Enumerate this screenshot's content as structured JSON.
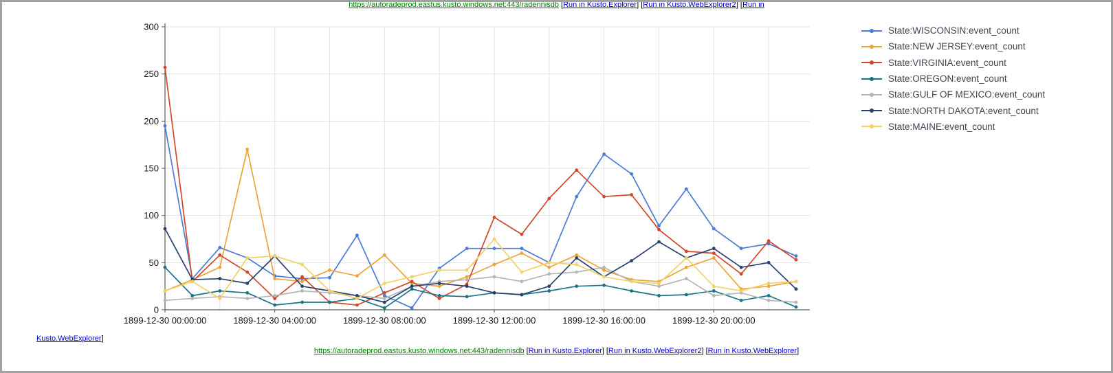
{
  "colors": {
    "frame_border": "#a1a1a1",
    "grid_line": "#e2e2e2",
    "axis_line": "#5a5a5a",
    "axis_text": "#141414",
    "legend_text": "#3f4652",
    "url_link": "#008000",
    "run_link": "#0000d0"
  },
  "top_bar": {
    "url": "https://autoradeprod.eastus.kusto.windows.net:443/radennisdb",
    "links": [
      {
        "open": " [",
        "label": "Run in Kusto.Explorer",
        "close": "]"
      },
      {
        "open": " [",
        "label": "Run in Kusto.WebExplorer2",
        "close": "]"
      },
      {
        "open": " [",
        "label": "Run in",
        "close": ""
      }
    ]
  },
  "bottom_bar": {
    "url": "https://autoradeprod.eastus.kusto.windows.net:443/radennisdb",
    "links": [
      {
        "open": " [",
        "label": "Run in Kusto.Explorer",
        "close": "]"
      },
      {
        "open": " [",
        "label": "Run in Kusto.WebExplorer2",
        "close": "]"
      },
      {
        "open": " [",
        "label": "Run in Kusto.WebExplorer",
        "close": "]"
      }
    ]
  },
  "bottom_left": {
    "label": "Kusto.WebExplorer",
    "close": "]"
  },
  "chart_data": {
    "type": "line",
    "title": "",
    "xlabel": "",
    "ylabel": "",
    "ylim": [
      0,
      300
    ],
    "yticks": [
      0,
      50,
      100,
      150,
      200,
      250,
      300
    ],
    "x_unit": "hours since 1899-12-30 00:00:00",
    "x_hours": [
      0,
      1,
      2,
      3,
      4,
      5,
      6,
      7,
      8,
      9,
      10,
      11,
      12,
      13,
      14,
      15,
      16,
      17,
      18,
      19,
      20,
      21,
      22,
      23
    ],
    "xticks": [
      {
        "hour": 0,
        "label": "1899-12-30 00:00:00"
      },
      {
        "hour": 4,
        "label": "1899-12-30 04:00:00"
      },
      {
        "hour": 8,
        "label": "1899-12-30 08:00:00"
      },
      {
        "hour": 12,
        "label": "1899-12-30 12:00:00"
      },
      {
        "hour": 16,
        "label": "1899-12-30 16:00:00"
      },
      {
        "hour": 20,
        "label": "1899-12-30 20:00:00"
      }
    ],
    "grid": true,
    "legend_position": "right",
    "series": [
      {
        "name": "State:WISCONSIN:event_count",
        "color": "#4a7ad8",
        "values": [
          195,
          33,
          66,
          55,
          36,
          33,
          34,
          79,
          15,
          2,
          44,
          65,
          65,
          65,
          50,
          120,
          165,
          144,
          89,
          128,
          86,
          65,
          70,
          57
        ]
      },
      {
        "name": "State:NEW JERSEY:event_count",
        "color": "#eda338",
        "values": [
          20,
          32,
          45,
          170,
          33,
          30,
          42,
          36,
          58,
          28,
          25,
          35,
          48,
          60,
          45,
          58,
          42,
          32,
          30,
          45,
          55,
          22,
          25,
          30
        ]
      },
      {
        "name": "State:VIRGINIA:event_count",
        "color": "#d2472b",
        "values": [
          257,
          30,
          58,
          40,
          12,
          35,
          8,
          5,
          18,
          30,
          12,
          27,
          98,
          80,
          118,
          148,
          120,
          122,
          85,
          62,
          60,
          38,
          73,
          53
        ]
      },
      {
        "name": "State:OREGON:event_count",
        "color": "#1a7286",
        "values": [
          45,
          15,
          20,
          18,
          5,
          8,
          8,
          12,
          2,
          22,
          15,
          14,
          18,
          16,
          20,
          25,
          26,
          20,
          15,
          16,
          20,
          10,
          15,
          3
        ]
      },
      {
        "name": "State:GULF OF MEXICO:event_count",
        "color": "#b5b5b5",
        "values": [
          10,
          12,
          14,
          12,
          15,
          20,
          18,
          15,
          12,
          25,
          30,
          32,
          35,
          30,
          38,
          40,
          45,
          30,
          25,
          33,
          15,
          18,
          10,
          8
        ]
      },
      {
        "name": "State:NORTH DAKOTA:event_count",
        "color": "#27406e",
        "values": [
          86,
          32,
          33,
          28,
          57,
          25,
          20,
          15,
          8,
          25,
          28,
          25,
          18,
          16,
          25,
          55,
          35,
          52,
          72,
          55,
          65,
          45,
          50,
          22
        ]
      },
      {
        "name": "State:MAINE:event_count",
        "color": "#f2d165",
        "values": [
          20,
          30,
          12,
          55,
          57,
          48,
          20,
          12,
          28,
          35,
          42,
          42,
          75,
          40,
          50,
          48,
          35,
          30,
          28,
          55,
          25,
          20,
          28,
          30
        ]
      }
    ]
  }
}
